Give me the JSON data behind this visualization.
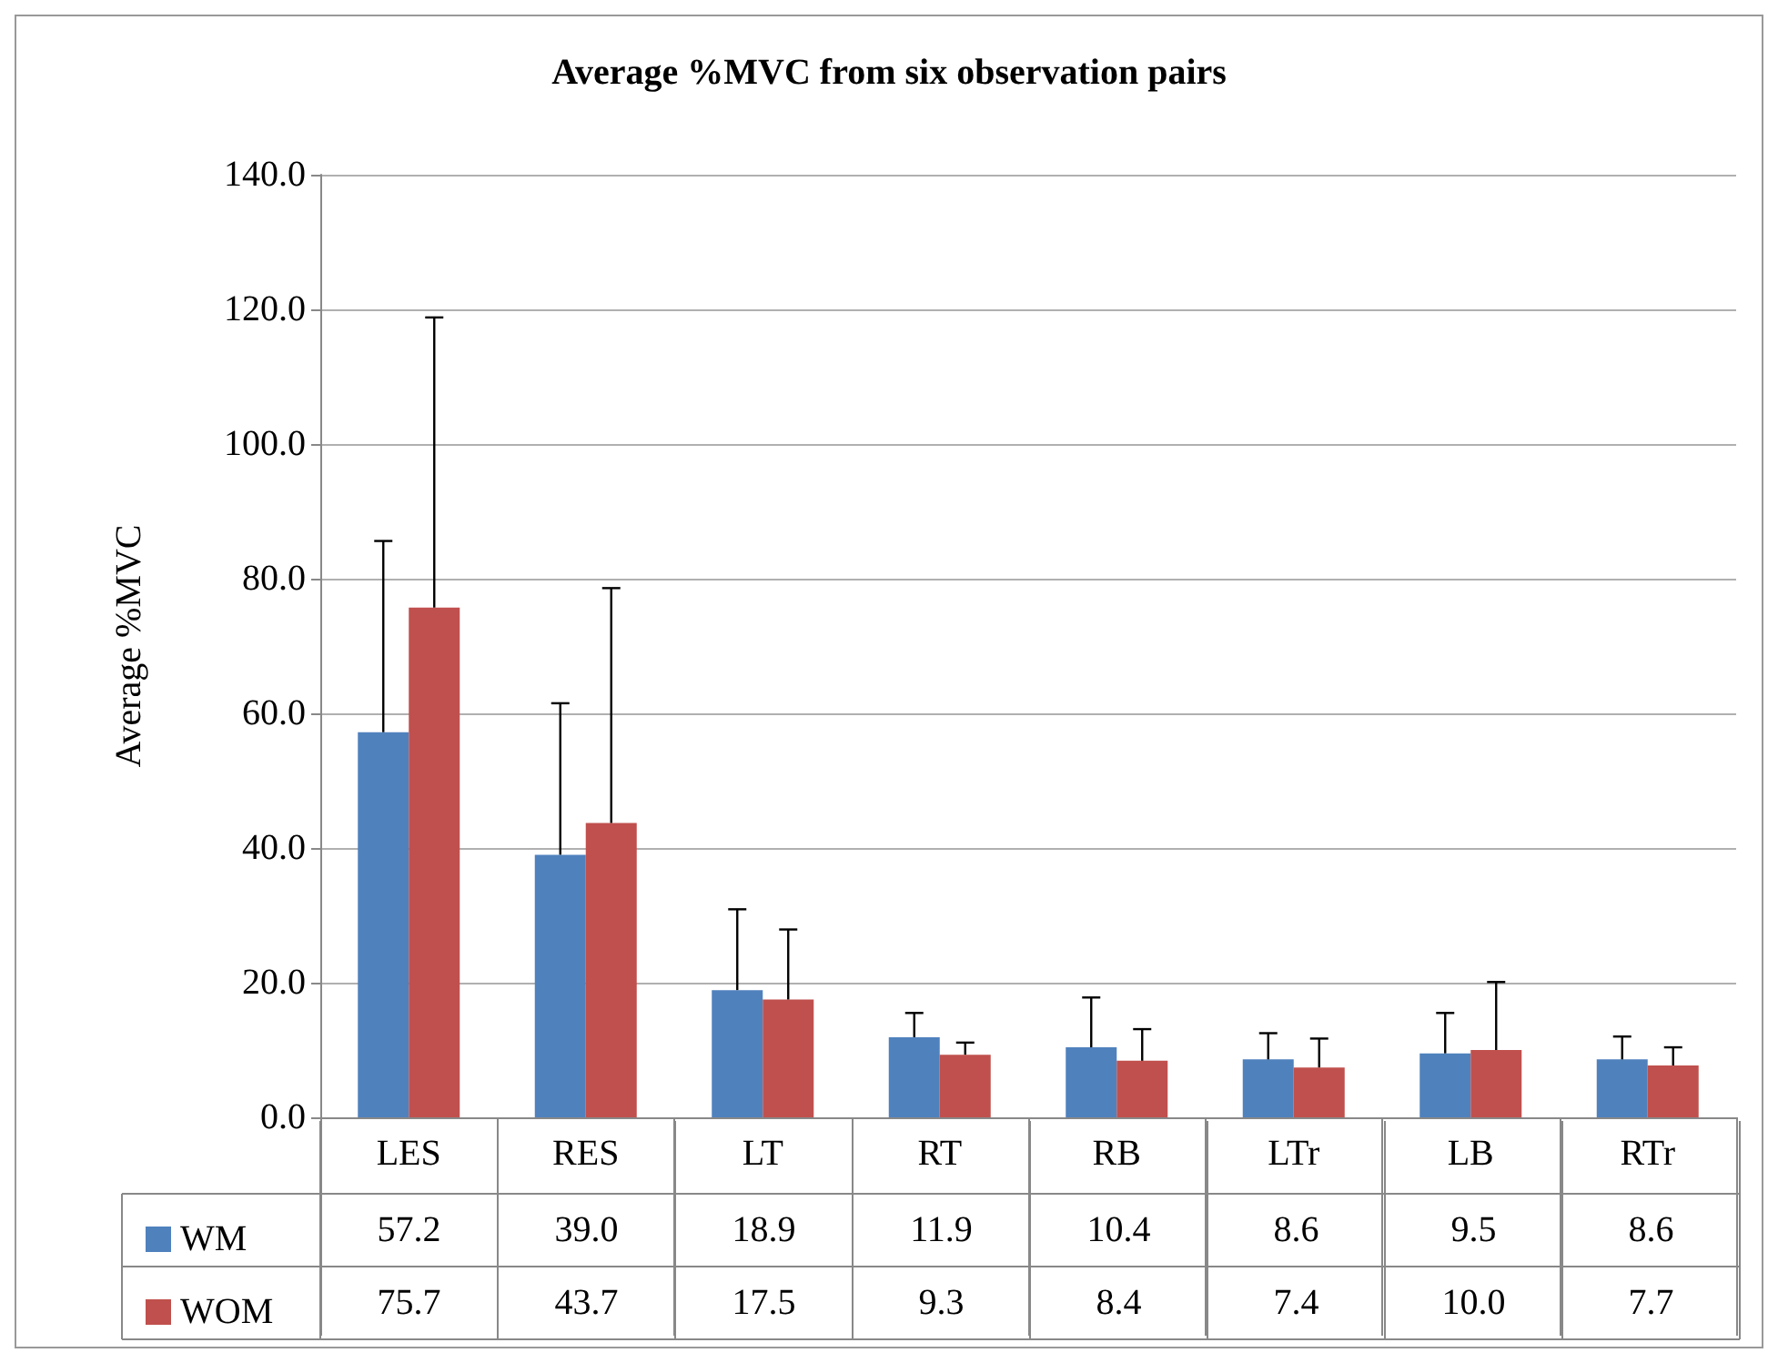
{
  "chart_data": {
    "type": "bar",
    "title": "Average %MVC from six observation pairs",
    "ylabel": "Average %MVC",
    "categories": [
      "LES",
      "RES",
      "LT",
      "RT",
      "RB",
      "LTr",
      "LB",
      "RTr"
    ],
    "series": [
      {
        "name": "WM",
        "color": "#4f81bd",
        "values": [
          57.2,
          39.0,
          18.9,
          11.9,
          10.4,
          8.6,
          9.5,
          8.6
        ],
        "value_labels": [
          "57.2",
          "39.0",
          "18.9",
          "11.9",
          "10.4",
          "8.6",
          "9.5",
          "8.6"
        ],
        "errors": [
          [
            57.2,
            85.6
          ],
          [
            39.0,
            61.5
          ],
          [
            18.9,
            30.9
          ],
          [
            11.9,
            15.5
          ],
          [
            10.4,
            17.8
          ],
          [
            8.6,
            12.5
          ],
          [
            9.5,
            15.5
          ],
          [
            8.6,
            12.0
          ]
        ]
      },
      {
        "name": "WOM",
        "color": "#c0504d",
        "values": [
          75.7,
          43.7,
          17.5,
          9.3,
          8.4,
          7.4,
          10.0,
          7.7
        ],
        "value_labels": [
          "75.7",
          "43.7",
          "17.5",
          "9.3",
          "8.4",
          "7.4",
          "10.0",
          "7.7"
        ],
        "errors": [
          [
            75.7,
            118.8
          ],
          [
            43.7,
            78.6
          ],
          [
            17.5,
            27.9
          ],
          [
            9.3,
            11.1
          ],
          [
            8.4,
            13.1
          ],
          [
            7.4,
            11.7
          ],
          [
            10.0,
            20.1
          ],
          [
            7.7,
            10.4
          ]
        ]
      }
    ],
    "ylim": [
      0,
      140
    ],
    "yticks": [
      {
        "value": 0,
        "label": "0.0"
      },
      {
        "value": 20,
        "label": "20.0"
      },
      {
        "value": 40,
        "label": "40.0"
      },
      {
        "value": 60,
        "label": "60.0"
      },
      {
        "value": 80,
        "label": "80.0"
      },
      {
        "value": 100,
        "label": "100.0"
      },
      {
        "value": 120,
        "label": "120.0"
      },
      {
        "value": 140,
        "label": "140.0"
      }
    ],
    "grid": "y",
    "legend": "bottom left"
  }
}
